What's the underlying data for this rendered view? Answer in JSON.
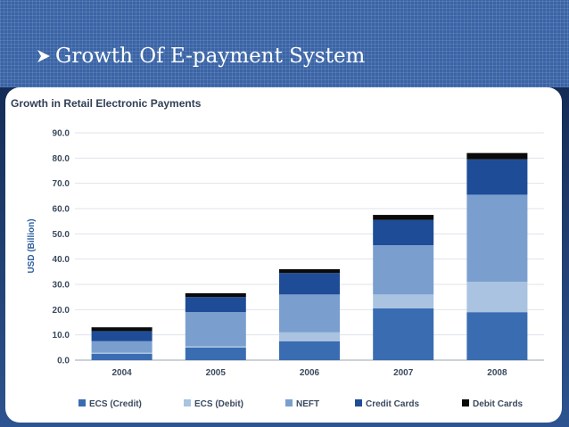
{
  "slide": {
    "title": "Growth Of E-payment System"
  },
  "chart_data": {
    "type": "bar",
    "stacked": true,
    "title": "Growth in Retail Electronic Payments",
    "xlabel": "",
    "ylabel": "USD (Billion)",
    "ylim": [
      0,
      90
    ],
    "yticks": [
      "0.0",
      "10.0",
      "20.0",
      "30.0",
      "40.0",
      "50.0",
      "60.0",
      "70.0",
      "80.0",
      "90.0"
    ],
    "categories": [
      "2004",
      "2005",
      "2006",
      "2007",
      "2008"
    ],
    "grid": true,
    "legend_position": "bottom",
    "series": [
      {
        "name": "ECS (Credit)",
        "color": "#3a6cb1",
        "values": [
          2.5,
          5.0,
          7.5,
          20.5,
          19.0
        ]
      },
      {
        "name": "ECS (Debit)",
        "color": "#a9c3e0",
        "values": [
          0.5,
          0.5,
          3.5,
          5.5,
          12.0
        ]
      },
      {
        "name": "NEFT",
        "color": "#7a9fcf",
        "values": [
          4.5,
          13.5,
          15.0,
          19.5,
          34.5
        ]
      },
      {
        "name": "Credit Cards",
        "color": "#1f4c97",
        "values": [
          4.0,
          6.0,
          8.5,
          10.0,
          14.0
        ]
      },
      {
        "name": "Debit Cards",
        "color": "#0a0a0a",
        "values": [
          1.5,
          1.5,
          1.5,
          2.0,
          2.5
        ]
      }
    ]
  }
}
